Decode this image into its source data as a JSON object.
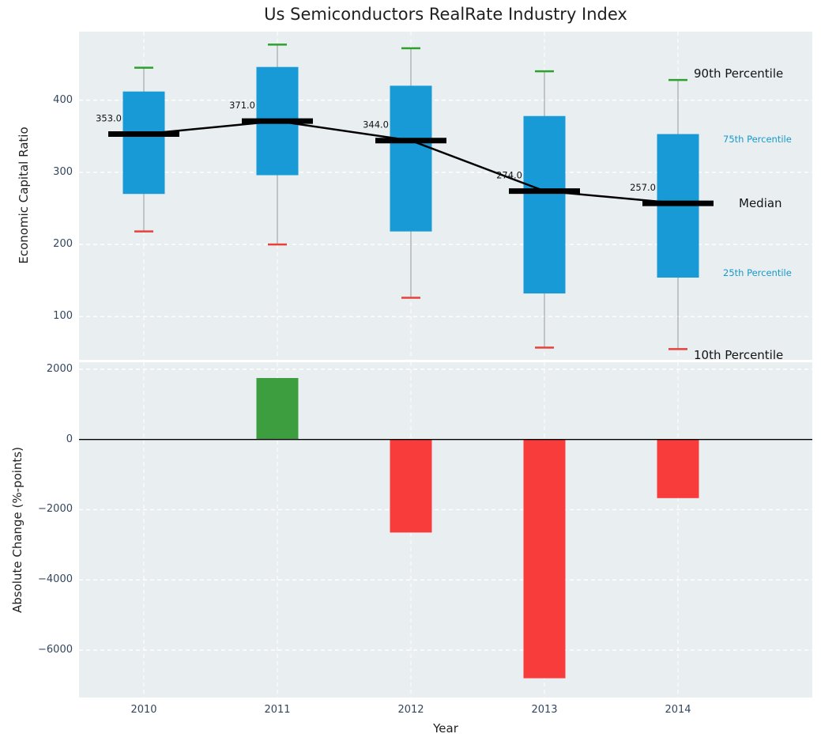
{
  "title": "Us Semiconductors RealRate Industry Index",
  "colors": {
    "panel_bg": "#e9eef1",
    "grid": "#ffffff",
    "box_fill": "#179ad5",
    "whisker": "#999999",
    "cap_high": "#2da02d",
    "cap_low": "#e8403a",
    "median": "#000000",
    "bar_positive": "#3d9e40",
    "bar_negative": "#f83b3b",
    "zero_line": "#000000",
    "percentile_label_blue": "#1799c9",
    "tick_label": "#33475f"
  },
  "chart_data": [
    {
      "type": "box-timeseries",
      "title": "Us Semiconductors RealRate Industry Index",
      "ylabel": "Economic Capital Ratio",
      "categories": [
        "2010",
        "2011",
        "2012",
        "2013",
        "2014"
      ],
      "series": {
        "p10": [
          218,
          200,
          126,
          57,
          55
        ],
        "p25": [
          270,
          296,
          218,
          132,
          154
        ],
        "median": [
          353,
          371,
          344,
          274,
          257
        ],
        "p75": [
          412,
          446,
          420,
          378,
          353
        ],
        "p90": [
          445,
          477,
          472,
          440,
          428
        ]
      },
      "median_labels": [
        "353.0",
        "371.0",
        "344.0",
        "274.0",
        "257.0"
      ],
      "yticks": [
        100,
        200,
        300,
        400
      ],
      "ytick_labels": [
        "100",
        "200",
        "300",
        "400"
      ],
      "ylim": [
        40,
        495
      ],
      "grid": true,
      "annotations": [
        {
          "label": "90th Percentile",
          "style": "large",
          "v": 437,
          "x": 878
        },
        {
          "label": "75th Percentile",
          "style": "small",
          "v": 346,
          "x": 915
        },
        {
          "label": "Median",
          "style": "large",
          "v": 257,
          "x": 935
        },
        {
          "label": "25th Percentile",
          "style": "small",
          "v": 161,
          "x": 915
        },
        {
          "label": "10th Percentile",
          "style": "large",
          "v": 47,
          "x": 878
        }
      ]
    },
    {
      "type": "bar",
      "xlabel": "Year",
      "ylabel": "Absolute Change (%-points)",
      "categories": [
        "2010",
        "2011",
        "2012",
        "2013",
        "2014"
      ],
      "values": [
        0,
        1750,
        -2650,
        -6800,
        -1670
      ],
      "yticks": [
        2000,
        0,
        -2000,
        -4000,
        -6000
      ],
      "ytick_labels": [
        "2000",
        "0",
        "−2000",
        "−4000",
        "−6000"
      ],
      "ylim": [
        -7350,
        2200
      ],
      "grid": true
    }
  ]
}
